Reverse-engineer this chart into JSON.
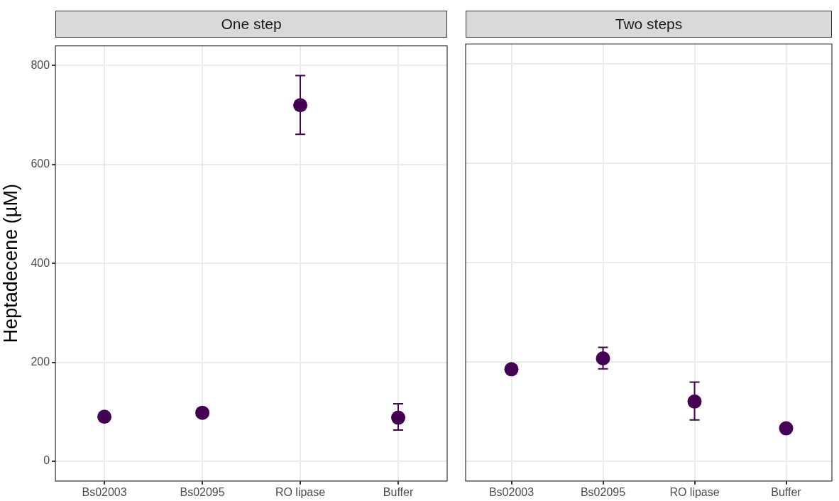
{
  "chart_data": [
    {
      "type": "scatter",
      "title": "One step",
      "ylabel": "Heptadecene (µM)",
      "categories": [
        "Bs02003",
        "Bs02095",
        "RO lipase",
        "Buffer"
      ],
      "ylim": [
        -40,
        840
      ],
      "yticks": [
        0,
        200,
        400,
        600,
        800
      ],
      "grid": true,
      "marker": "circle",
      "series": [
        {
          "color": "#440154",
          "values": [
            90,
            98,
            720,
            88
          ],
          "errors": [
            null,
            null,
            [
              661,
              780
            ],
            [
              63,
              116
            ]
          ]
        }
      ]
    },
    {
      "type": "scatter",
      "title": "Two steps",
      "categories": [
        "Bs02003",
        "Bs02095",
        "RO lipase",
        "Buffer"
      ],
      "ylim": [
        -40,
        840
      ],
      "yticks": [
        0,
        200,
        400,
        600,
        800
      ],
      "grid": true,
      "marker": "circle",
      "tick_labels": "x",
      "series": [
        {
          "color": "#440154",
          "values": [
            185,
            207,
            120,
            66
          ],
          "errors": [
            null,
            [
              186,
              229
            ],
            [
              83,
              159
            ],
            null
          ]
        }
      ]
    }
  ]
}
